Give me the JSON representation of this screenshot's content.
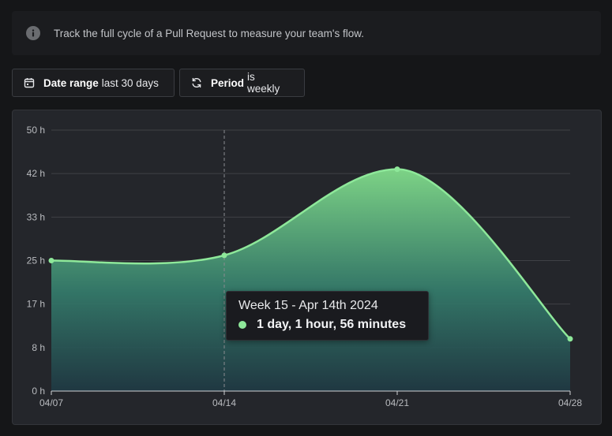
{
  "banner": {
    "icon": "info-icon",
    "text": "Track the full cycle of a Pull Request to measure your team's flow."
  },
  "filters": {
    "date_range": {
      "icon": "calendar-icon",
      "label": "Date range",
      "value": "last 30 days"
    },
    "period": {
      "icon": "refresh-icon",
      "label": "Period",
      "value": "is weekly"
    }
  },
  "colors": {
    "line": "#8ee89a",
    "area_top": "#7dd386",
    "area_bottom": "#1f3a44",
    "grid": "#3f4146"
  },
  "chart_data": {
    "type": "area",
    "title": "",
    "xlabel": "",
    "ylabel": "",
    "x": [
      "04/07",
      "04/14",
      "04/21",
      "04/28"
    ],
    "values": [
      25,
      26,
      42.5,
      10
    ],
    "ylim": [
      0,
      50
    ],
    "yticks": [
      {
        "value": 0,
        "label": "0 h"
      },
      {
        "value": 8.33,
        "label": "8 h"
      },
      {
        "value": 16.67,
        "label": "17 h"
      },
      {
        "value": 25,
        "label": "25 h"
      },
      {
        "value": 33.33,
        "label": "33 h"
      },
      {
        "value": 41.67,
        "label": "42 h"
      },
      {
        "value": 50,
        "label": "50 h"
      }
    ],
    "hover_index": 1,
    "grid": true,
    "legend": "none"
  },
  "tooltip": {
    "title": "Week 15 - Apr 14th 2024",
    "value": "1 day, 1 hour, 56 minutes"
  }
}
